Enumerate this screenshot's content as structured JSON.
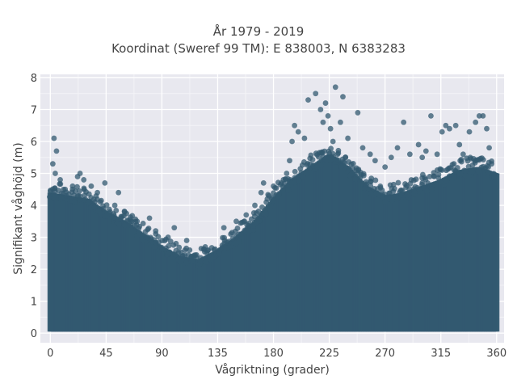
{
  "chart_data": {
    "type": "scatter",
    "title_line1": "År 1979 - 2019",
    "title_line2": "Koordinat (Sweref 99 TM): E 838003, N 6383283",
    "xlabel": "Vågriktning (grader)",
    "ylabel": "Signifikant våghöjd (m)",
    "xlim": [
      -8,
      366
    ],
    "ylim": [
      -0.3,
      8.1
    ],
    "xticks": [
      0,
      45,
      90,
      135,
      180,
      225,
      270,
      315,
      360
    ],
    "yticks": [
      0,
      1,
      2,
      3,
      4,
      5,
      6,
      7,
      8
    ],
    "grid": true,
    "marker_color": "#335a70",
    "plot_background": "#e8e8ef",
    "envelope": {
      "direction": [
        0,
        15,
        30,
        45,
        60,
        75,
        90,
        105,
        120,
        135,
        150,
        165,
        180,
        195,
        210,
        225,
        240,
        255,
        270,
        285,
        300,
        315,
        330,
        345,
        360
      ],
      "height_max": [
        4.4,
        4.3,
        4.2,
        3.8,
        3.5,
        3.1,
        2.7,
        2.4,
        2.3,
        2.6,
        3.0,
        3.5,
        4.2,
        4.8,
        5.2,
        5.6,
        5.2,
        4.6,
        4.3,
        4.4,
        4.6,
        4.8,
        5.1,
        5.2,
        5.0
      ]
    },
    "points": [
      {
        "x": 3,
        "y": 6.1
      },
      {
        "x": 5,
        "y": 5.7
      },
      {
        "x": 2,
        "y": 5.3
      },
      {
        "x": 4,
        "y": 5.0
      },
      {
        "x": 8,
        "y": 4.8
      },
      {
        "x": 12,
        "y": 4.5
      },
      {
        "x": 18,
        "y": 4.6
      },
      {
        "x": 22,
        "y": 4.9
      },
      {
        "x": 24,
        "y": 5.0
      },
      {
        "x": 27,
        "y": 4.8
      },
      {
        "x": 33,
        "y": 4.6
      },
      {
        "x": 38,
        "y": 4.4
      },
      {
        "x": 44,
        "y": 4.7
      },
      {
        "x": 55,
        "y": 4.4
      },
      {
        "x": 52,
        "y": 4.0
      },
      {
        "x": 60,
        "y": 3.8
      },
      {
        "x": 70,
        "y": 3.5
      },
      {
        "x": 80,
        "y": 3.6
      },
      {
        "x": 85,
        "y": 3.2
      },
      {
        "x": 95,
        "y": 3.0
      },
      {
        "x": 100,
        "y": 3.3
      },
      {
        "x": 110,
        "y": 2.9
      },
      {
        "x": 125,
        "y": 2.7
      },
      {
        "x": 140,
        "y": 3.3
      },
      {
        "x": 150,
        "y": 3.5
      },
      {
        "x": 158,
        "y": 3.7
      },
      {
        "x": 165,
        "y": 4.0
      },
      {
        "x": 170,
        "y": 4.4
      },
      {
        "x": 172,
        "y": 4.7
      },
      {
        "x": 180,
        "y": 4.6
      },
      {
        "x": 188,
        "y": 4.8
      },
      {
        "x": 193,
        "y": 5.4
      },
      {
        "x": 195,
        "y": 6.0
      },
      {
        "x": 197,
        "y": 6.5
      },
      {
        "x": 200,
        "y": 6.3
      },
      {
        "x": 205,
        "y": 6.1
      },
      {
        "x": 208,
        "y": 7.3
      },
      {
        "x": 214,
        "y": 7.5
      },
      {
        "x": 218,
        "y": 7.0
      },
      {
        "x": 220,
        "y": 6.6
      },
      {
        "x": 222,
        "y": 7.2
      },
      {
        "x": 224,
        "y": 6.8
      },
      {
        "x": 226,
        "y": 6.4
      },
      {
        "x": 228,
        "y": 6.0
      },
      {
        "x": 230,
        "y": 7.7
      },
      {
        "x": 234,
        "y": 6.6
      },
      {
        "x": 236,
        "y": 7.4
      },
      {
        "x": 240,
        "y": 6.1
      },
      {
        "x": 248,
        "y": 6.9
      },
      {
        "x": 252,
        "y": 5.8
      },
      {
        "x": 258,
        "y": 5.6
      },
      {
        "x": 262,
        "y": 5.4
      },
      {
        "x": 270,
        "y": 5.2
      },
      {
        "x": 275,
        "y": 5.5
      },
      {
        "x": 280,
        "y": 5.8
      },
      {
        "x": 285,
        "y": 6.6
      },
      {
        "x": 290,
        "y": 5.6
      },
      {
        "x": 297,
        "y": 5.9
      },
      {
        "x": 300,
        "y": 5.5
      },
      {
        "x": 303,
        "y": 5.7
      },
      {
        "x": 307,
        "y": 6.8
      },
      {
        "x": 312,
        "y": 5.6
      },
      {
        "x": 316,
        "y": 6.3
      },
      {
        "x": 319,
        "y": 6.5
      },
      {
        "x": 322,
        "y": 6.4
      },
      {
        "x": 327,
        "y": 6.5
      },
      {
        "x": 330,
        "y": 5.9
      },
      {
        "x": 333,
        "y": 5.6
      },
      {
        "x": 338,
        "y": 6.3
      },
      {
        "x": 343,
        "y": 6.6
      },
      {
        "x": 346,
        "y": 6.8
      },
      {
        "x": 349,
        "y": 6.8
      },
      {
        "x": 352,
        "y": 6.4
      },
      {
        "x": 354,
        "y": 5.8
      },
      {
        "x": 356,
        "y": 5.3
      }
    ]
  }
}
